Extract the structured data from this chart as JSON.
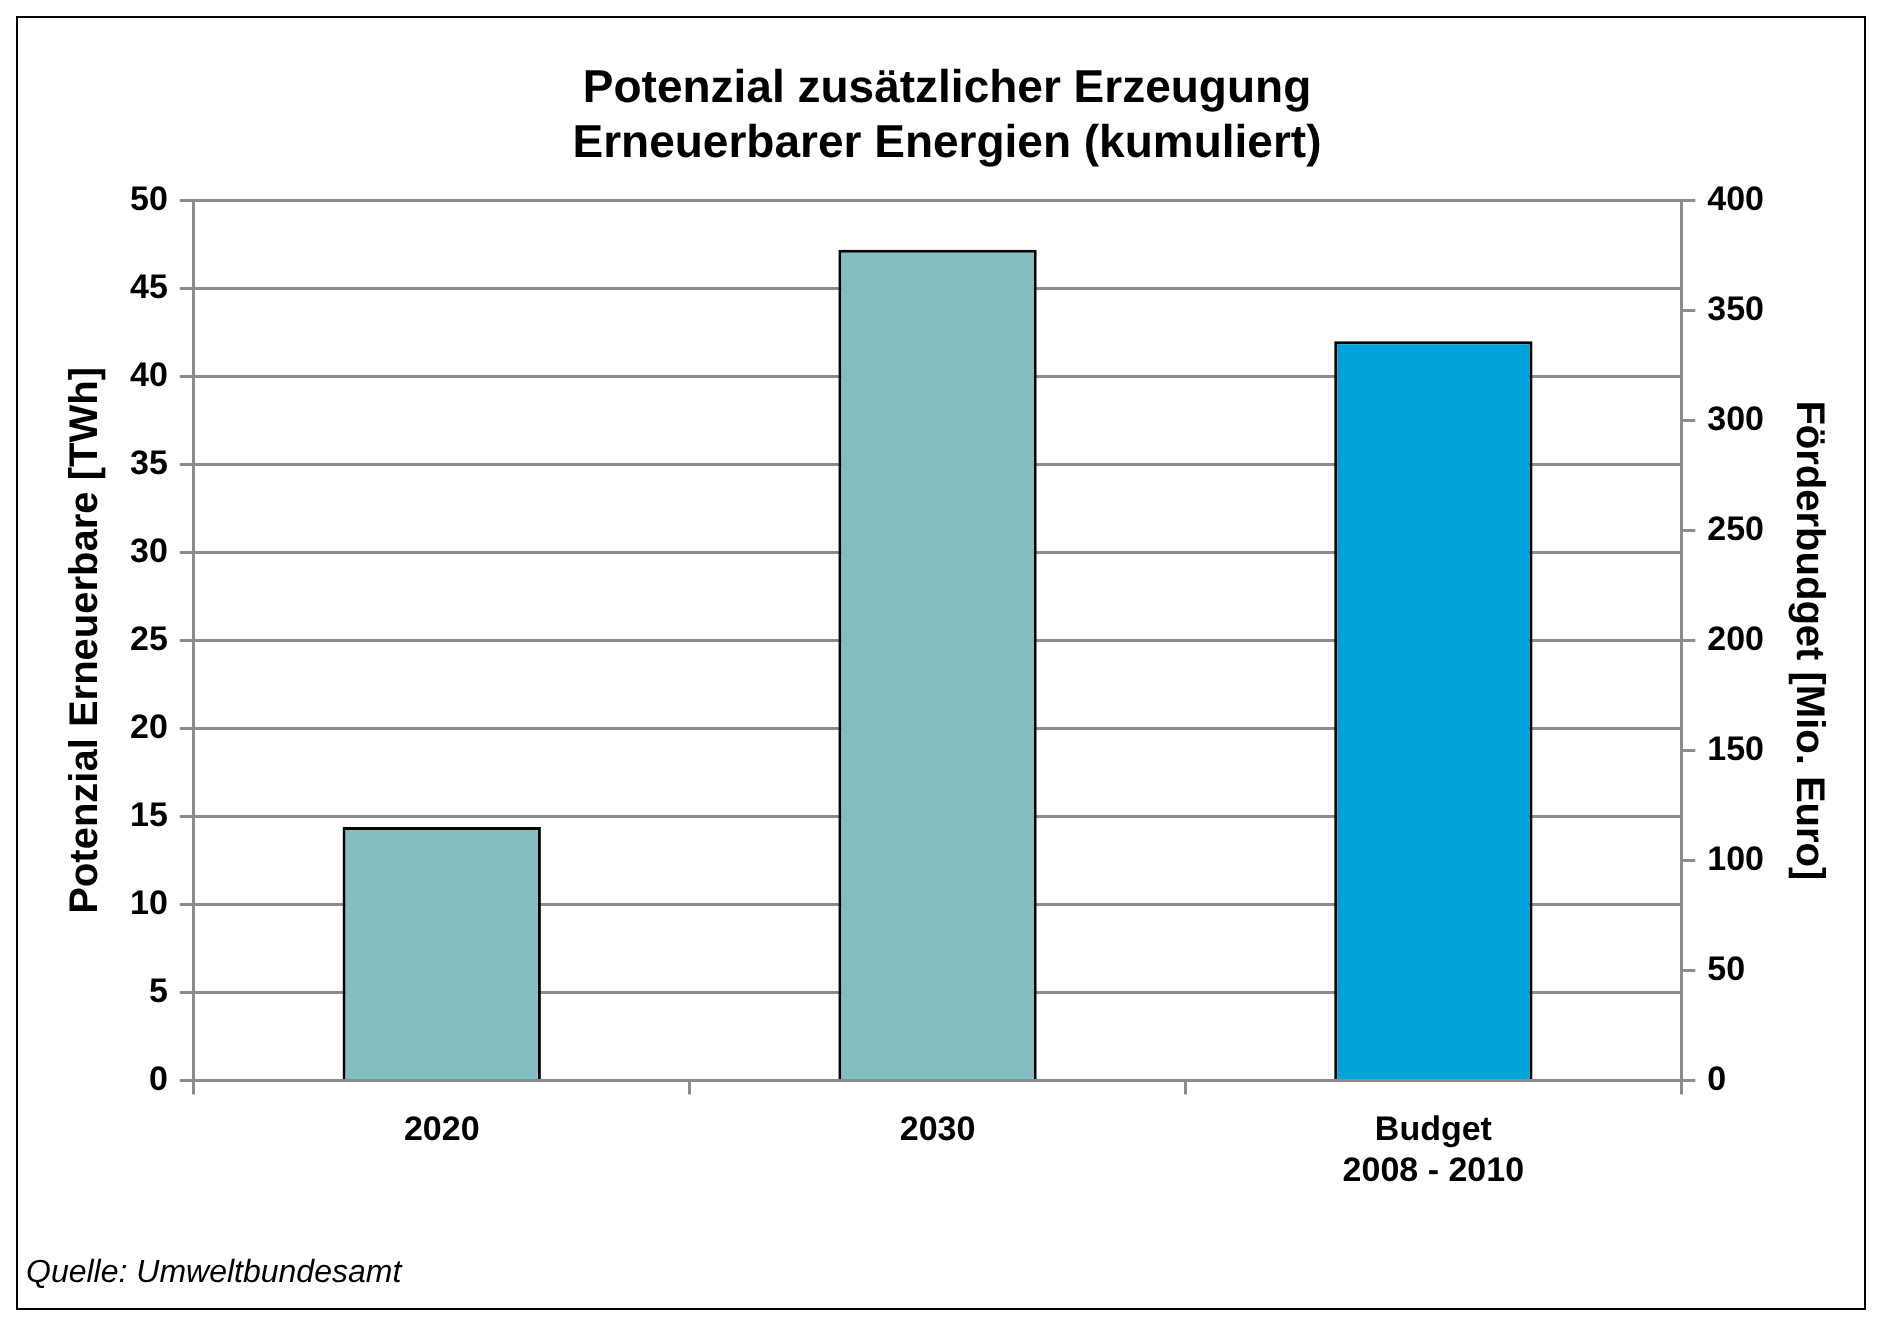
{
  "chart_data": {
    "type": "bar",
    "title": "Potenzial zusätzlicher Erzeugung\nErneuerbarer Energien (kumuliert)",
    "categories": [
      "2020",
      "2030",
      "Budget\n2008 - 2010"
    ],
    "series": [
      {
        "color": "#83bec0",
        "values": [
          14.4,
          47.2,
          null
        ]
      },
      {
        "color": "#00a3d9",
        "values": [
          null,
          null,
          336
        ],
        "axis": "y2"
      }
    ],
    "ylabel": "Potenzial Erneuerbare [TWh]",
    "y2label": "Förderbudget [Mio. Euro]",
    "ylim": [
      0,
      50
    ],
    "yticks": [
      0,
      5,
      10,
      15,
      20,
      25,
      30,
      35,
      40,
      45,
      50
    ],
    "y2lim": [
      0,
      400
    ],
    "y2ticks": [
      0,
      50,
      100,
      150,
      200,
      250,
      300,
      350,
      400
    ],
    "grid": "y",
    "legend": false,
    "annotations": [
      "Quelle: Umweltbundesamt"
    ]
  }
}
